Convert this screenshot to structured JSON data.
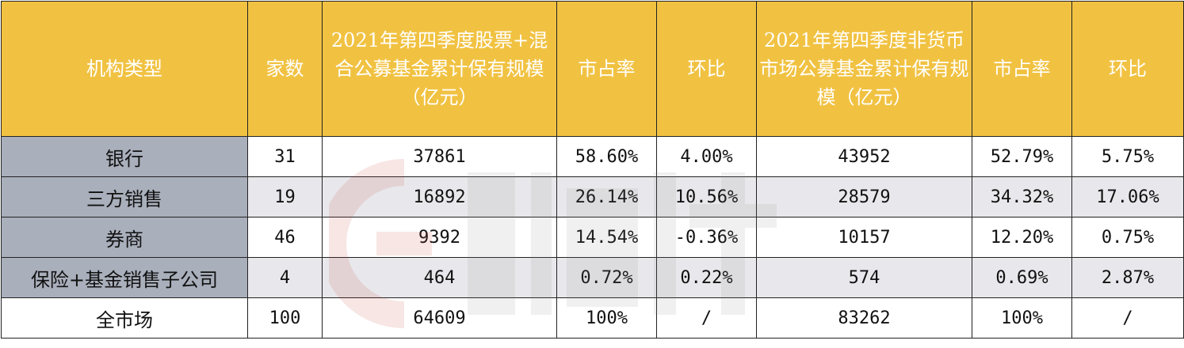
{
  "headers": [
    "机构类型",
    "家数",
    "2021年第四季度股票+混合公募基金累计保有规模（亿元）",
    "市占率",
    "环比",
    "2021年第四季度非货币市场公募基金累计保有规模（亿元）",
    "市占率",
    "环比"
  ],
  "rows": [
    {
      "type": "银行",
      "count": "31",
      "equity_scale": "37861",
      "equity_share": "58.60%",
      "equity_qoq": "4.00%",
      "nonmoney_scale": "43952",
      "nonmoney_share": "52.79%",
      "nonmoney_qoq": "5.75%"
    },
    {
      "type": "三方销售",
      "count": "19",
      "equity_scale": "16892",
      "equity_share": "26.14%",
      "equity_qoq": "10.56%",
      "nonmoney_scale": "28579",
      "nonmoney_share": "34.32%",
      "nonmoney_qoq": "17.06%"
    },
    {
      "type": "券商",
      "count": "46",
      "equity_scale": "9392",
      "equity_share": "14.54%",
      "equity_qoq": "-0.36%",
      "nonmoney_scale": "10157",
      "nonmoney_share": "12.20%",
      "nonmoney_qoq": "0.75%"
    },
    {
      "type": "保险+基金销售子公司",
      "count": "4",
      "equity_scale": "464",
      "equity_share": "0.72%",
      "equity_qoq": "0.22%",
      "nonmoney_scale": "574",
      "nonmoney_share": "0.69%",
      "nonmoney_qoq": "2.87%"
    },
    {
      "type": "全市场",
      "count": "100",
      "equity_scale": "64609",
      "equity_share": "100%",
      "equity_qoq": "/",
      "nonmoney_scale": "83262",
      "nonmoney_share": "100%",
      "nonmoney_qoq": "/"
    }
  ],
  "colors": {
    "header_bg": "#f1c242",
    "header_text": "#ffffff",
    "type_cell_bg": "#a9afbb",
    "stripe_bg": "#e8e8ec",
    "border": "#222222",
    "watermark": "#c0392b"
  },
  "watermark_icon": "brand-logo-watermark"
}
